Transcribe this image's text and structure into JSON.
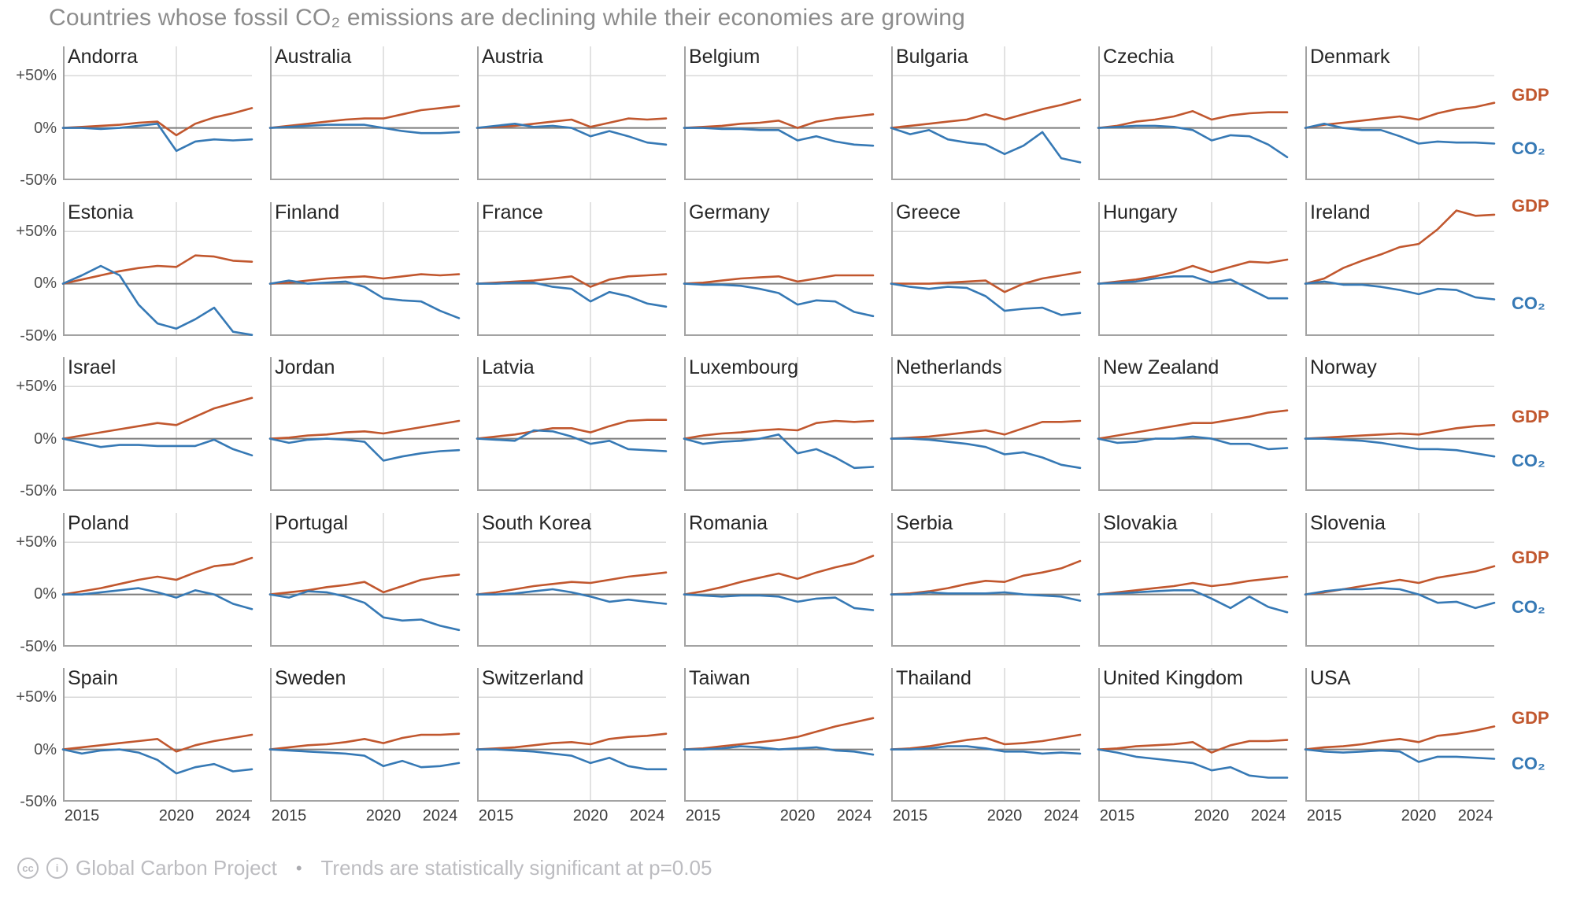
{
  "title": "Countries whose fossil CO₂ emissions are declining while their economies are growing",
  "legend": {
    "gdp": "GDP",
    "co2": "CO₂"
  },
  "footer": {
    "icons": [
      "cc-icon",
      "attribution-icon"
    ],
    "icon_glyphs": [
      "cc",
      "i"
    ],
    "source": "Global Carbon Project",
    "bullet": "•",
    "note": "Trends are statistically significant at p=0.05"
  },
  "axis": {
    "y_ticks": [
      "+50%",
      "0%",
      "-50%"
    ],
    "y_values": [
      50,
      0,
      -50
    ],
    "x_ticks": [
      "2015",
      "2020",
      "2024"
    ],
    "x_values": [
      2015,
      2020,
      2024
    ],
    "x_range": [
      2014,
      2024
    ],
    "y_display_range": [
      -50,
      78
    ],
    "gridline_year": 2020
  },
  "colors": {
    "gdp_line": "#c1572e",
    "co2_line": "#3679b5",
    "title_text": "#8c8c8c",
    "country_text": "#262626",
    "tick_text": "#4f4f4f",
    "footer_text": "#bcbcc0",
    "grid_light": "#d9d9d9",
    "zero_line": "#7c7c7c",
    "spine": "#a3a3a3"
  },
  "chart_data": {
    "type": "line",
    "grid": [
      7,
      5
    ],
    "series": [
      "GDP",
      "CO₂"
    ],
    "x": [
      2014,
      2015,
      2016,
      2017,
      2018,
      2019,
      2020,
      2021,
      2022,
      2023,
      2024
    ],
    "countries": [
      {
        "name": "Andorra",
        "gdp": [
          0,
          1,
          2,
          3,
          5,
          6,
          -7,
          4,
          10,
          14,
          19
        ],
        "co2": [
          0,
          0,
          -1,
          0,
          2,
          4,
          -22,
          -13,
          -11,
          -12,
          -11
        ]
      },
      {
        "name": "Australia",
        "gdp": [
          0,
          2,
          4,
          6,
          8,
          9,
          9,
          13,
          17,
          19,
          21
        ],
        "co2": [
          0,
          1,
          2,
          3,
          3,
          3,
          0,
          -3,
          -5,
          -5,
          -4
        ]
      },
      {
        "name": "Austria",
        "gdp": [
          0,
          1,
          2,
          4,
          6,
          8,
          1,
          5,
          9,
          8,
          9
        ],
        "co2": [
          0,
          2,
          4,
          1,
          2,
          0,
          -8,
          -3,
          -8,
          -14,
          -16
        ]
      },
      {
        "name": "Belgium",
        "gdp": [
          0,
          1,
          2,
          4,
          5,
          7,
          0,
          6,
          9,
          11,
          13
        ],
        "co2": [
          0,
          0,
          -1,
          -1,
          -2,
          -2,
          -12,
          -8,
          -13,
          -16,
          -17
        ]
      },
      {
        "name": "Bulgaria",
        "gdp": [
          0,
          2,
          4,
          6,
          8,
          13,
          8,
          13,
          18,
          22,
          27
        ],
        "co2": [
          0,
          -6,
          -2,
          -11,
          -14,
          -16,
          -25,
          -17,
          -4,
          -29,
          -33
        ]
      },
      {
        "name": "Czechia",
        "gdp": [
          0,
          2,
          6,
          8,
          11,
          16,
          8,
          12,
          14,
          15,
          15
        ],
        "co2": [
          0,
          1,
          2,
          2,
          1,
          -2,
          -12,
          -7,
          -8,
          -16,
          -28
        ]
      },
      {
        "name": "Denmark",
        "gdp": [
          0,
          3,
          5,
          7,
          9,
          11,
          8,
          14,
          18,
          20,
          24
        ],
        "co2": [
          0,
          4,
          0,
          -2,
          -2,
          -8,
          -15,
          -13,
          -14,
          -14,
          -15
        ]
      },
      {
        "name": "Estonia",
        "gdp": [
          0,
          4,
          8,
          12,
          15,
          17,
          16,
          27,
          26,
          22,
          21
        ],
        "co2": [
          0,
          8,
          17,
          8,
          -20,
          -38,
          -43,
          -34,
          -23,
          -46,
          -49
        ]
      },
      {
        "name": "Finland",
        "gdp": [
          0,
          1,
          3,
          5,
          6,
          7,
          5,
          7,
          9,
          8,
          9
        ],
        "co2": [
          0,
          3,
          0,
          1,
          2,
          -3,
          -14,
          -16,
          -17,
          -26,
          -33
        ]
      },
      {
        "name": "France",
        "gdp": [
          0,
          1,
          2,
          3,
          5,
          7,
          -3,
          4,
          7,
          8,
          9
        ],
        "co2": [
          0,
          0,
          1,
          1,
          -3,
          -5,
          -17,
          -8,
          -12,
          -19,
          -22
        ]
      },
      {
        "name": "Germany",
        "gdp": [
          0,
          1,
          3,
          5,
          6,
          7,
          2,
          5,
          8,
          8,
          8
        ],
        "co2": [
          0,
          -1,
          -1,
          -2,
          -5,
          -9,
          -20,
          -16,
          -17,
          -27,
          -31
        ]
      },
      {
        "name": "Greece",
        "gdp": [
          0,
          0,
          0,
          1,
          2,
          3,
          -8,
          0,
          5,
          8,
          11
        ],
        "co2": [
          0,
          -3,
          -5,
          -3,
          -4,
          -12,
          -26,
          -24,
          -23,
          -30,
          -28
        ]
      },
      {
        "name": "Hungary",
        "gdp": [
          0,
          2,
          4,
          7,
          11,
          17,
          11,
          16,
          21,
          20,
          23
        ],
        "co2": [
          0,
          1,
          2,
          5,
          7,
          7,
          1,
          4,
          -5,
          -14,
          -14
        ]
      },
      {
        "name": "Ireland",
        "gdp": [
          0,
          5,
          15,
          22,
          28,
          35,
          38,
          52,
          70,
          65,
          66
        ],
        "co2": [
          0,
          2,
          -1,
          -1,
          -3,
          -6,
          -10,
          -5,
          -6,
          -13,
          -15
        ]
      },
      {
        "name": "Israel",
        "gdp": [
          0,
          3,
          6,
          9,
          12,
          15,
          13,
          21,
          29,
          34,
          39
        ],
        "co2": [
          0,
          -4,
          -8,
          -6,
          -6,
          -7,
          -7,
          -7,
          -1,
          -10,
          -16
        ]
      },
      {
        "name": "Jordan",
        "gdp": [
          0,
          1,
          3,
          4,
          6,
          7,
          5,
          8,
          11,
          14,
          17
        ],
        "co2": [
          0,
          -4,
          -1,
          0,
          -1,
          -3,
          -21,
          -17,
          -14,
          -12,
          -11
        ]
      },
      {
        "name": "Latvia",
        "gdp": [
          0,
          2,
          4,
          7,
          10,
          10,
          6,
          12,
          17,
          18,
          18
        ],
        "co2": [
          0,
          -1,
          -2,
          8,
          7,
          2,
          -5,
          -2,
          -10,
          -11,
          -12
        ]
      },
      {
        "name": "Luxembourg",
        "gdp": [
          0,
          3,
          5,
          6,
          8,
          9,
          8,
          15,
          17,
          16,
          17
        ],
        "co2": [
          0,
          -5,
          -3,
          -2,
          0,
          4,
          -14,
          -10,
          -18,
          -28,
          -27
        ]
      },
      {
        "name": "Netherlands",
        "gdp": [
          0,
          1,
          2,
          4,
          6,
          8,
          4,
          10,
          16,
          16,
          17
        ],
        "co2": [
          0,
          0,
          -1,
          -3,
          -5,
          -8,
          -15,
          -13,
          -18,
          -25,
          -28
        ]
      },
      {
        "name": "New Zealand",
        "gdp": [
          0,
          3,
          6,
          9,
          12,
          15,
          15,
          18,
          21,
          25,
          27
        ],
        "co2": [
          0,
          -4,
          -3,
          0,
          0,
          2,
          0,
          -5,
          -5,
          -10,
          -9
        ]
      },
      {
        "name": "Norway",
        "gdp": [
          0,
          1,
          2,
          3,
          4,
          5,
          4,
          7,
          10,
          12,
          13
        ],
        "co2": [
          0,
          0,
          -1,
          -2,
          -4,
          -7,
          -10,
          -10,
          -11,
          -14,
          -17
        ]
      },
      {
        "name": "Poland",
        "gdp": [
          0,
          3,
          6,
          10,
          14,
          17,
          14,
          21,
          27,
          29,
          35
        ],
        "co2": [
          0,
          0,
          2,
          4,
          6,
          2,
          -3,
          4,
          0,
          -9,
          -14
        ]
      },
      {
        "name": "Portugal",
        "gdp": [
          0,
          2,
          4,
          7,
          9,
          12,
          2,
          8,
          14,
          17,
          19
        ],
        "co2": [
          0,
          -3,
          3,
          2,
          -2,
          -8,
          -22,
          -25,
          -24,
          -30,
          -34
        ]
      },
      {
        "name": "South Korea",
        "gdp": [
          0,
          2,
          5,
          8,
          10,
          12,
          11,
          14,
          17,
          19,
          21
        ],
        "co2": [
          0,
          0,
          1,
          3,
          5,
          2,
          -2,
          -7,
          -5,
          -7,
          -9
        ]
      },
      {
        "name": "Romania",
        "gdp": [
          0,
          3,
          7,
          12,
          16,
          20,
          15,
          21,
          26,
          30,
          37
        ],
        "co2": [
          0,
          -1,
          -2,
          -1,
          -1,
          -2,
          -7,
          -4,
          -3,
          -13,
          -15
        ]
      },
      {
        "name": "Serbia",
        "gdp": [
          0,
          1,
          3,
          6,
          10,
          13,
          12,
          18,
          21,
          25,
          32
        ],
        "co2": [
          0,
          0,
          2,
          1,
          1,
          1,
          2,
          0,
          -1,
          -2,
          -6
        ]
      },
      {
        "name": "Slovakia",
        "gdp": [
          0,
          2,
          4,
          6,
          8,
          11,
          8,
          10,
          13,
          15,
          17
        ],
        "co2": [
          0,
          1,
          2,
          3,
          4,
          4,
          -4,
          -13,
          -2,
          -12,
          -17
        ]
      },
      {
        "name": "Slovenia",
        "gdp": [
          0,
          2,
          5,
          8,
          11,
          14,
          11,
          16,
          19,
          22,
          27
        ],
        "co2": [
          0,
          3,
          5,
          5,
          6,
          5,
          0,
          -8,
          -7,
          -13,
          -8
        ]
      },
      {
        "name": "Spain",
        "gdp": [
          0,
          2,
          4,
          6,
          8,
          10,
          -2,
          4,
          8,
          11,
          14
        ],
        "co2": [
          0,
          -4,
          -1,
          0,
          -3,
          -10,
          -23,
          -17,
          -14,
          -21,
          -19
        ]
      },
      {
        "name": "Sweden",
        "gdp": [
          0,
          2,
          4,
          5,
          7,
          10,
          6,
          11,
          14,
          14,
          15
        ],
        "co2": [
          0,
          -1,
          -2,
          -3,
          -4,
          -6,
          -16,
          -11,
          -17,
          -16,
          -13
        ]
      },
      {
        "name": "Switzerland",
        "gdp": [
          0,
          1,
          2,
          4,
          6,
          7,
          5,
          10,
          12,
          13,
          15
        ],
        "co2": [
          0,
          0,
          -1,
          -2,
          -4,
          -6,
          -13,
          -8,
          -16,
          -19,
          -19
        ]
      },
      {
        "name": "Taiwan",
        "gdp": [
          0,
          1,
          3,
          5,
          7,
          9,
          12,
          17,
          22,
          26,
          30
        ],
        "co2": [
          0,
          0,
          1,
          3,
          2,
          0,
          1,
          2,
          -1,
          -2,
          -5
        ]
      },
      {
        "name": "Thailand",
        "gdp": [
          0,
          1,
          3,
          6,
          9,
          11,
          5,
          6,
          8,
          11,
          14
        ],
        "co2": [
          0,
          0,
          1,
          3,
          3,
          1,
          -2,
          -2,
          -4,
          -3,
          -4
        ]
      },
      {
        "name": "United Kingdom",
        "gdp": [
          0,
          1,
          3,
          4,
          5,
          7,
          -3,
          4,
          8,
          8,
          9
        ],
        "co2": [
          0,
          -3,
          -7,
          -9,
          -11,
          -13,
          -20,
          -17,
          -25,
          -27,
          -27
        ]
      },
      {
        "name": "USA",
        "gdp": [
          0,
          2,
          3,
          5,
          8,
          10,
          7,
          13,
          15,
          18,
          22
        ],
        "co2": [
          0,
          -2,
          -3,
          -2,
          -1,
          -2,
          -12,
          -7,
          -7,
          -8,
          -9
        ]
      }
    ]
  }
}
